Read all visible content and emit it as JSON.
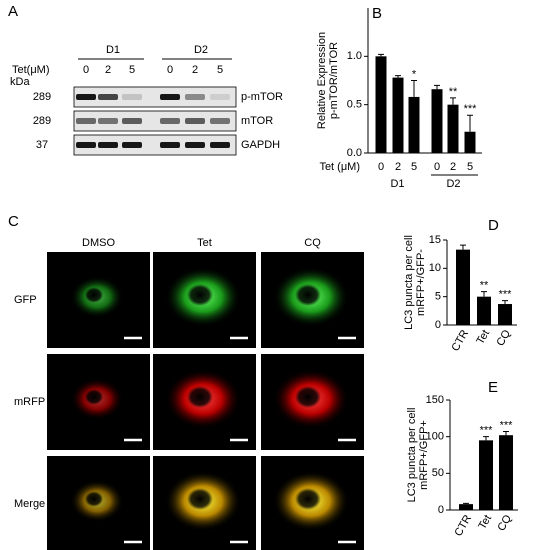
{
  "panels": [
    "A",
    "B",
    "C",
    "D",
    "E"
  ],
  "blot": {
    "treatment_label": "Tet(μM)",
    "unit_label": "kDa",
    "groups": [
      "D1",
      "D2"
    ],
    "lanes": [
      "0",
      "2",
      "5",
      "0",
      "2",
      "5"
    ],
    "rows": [
      {
        "kda": "289",
        "name": "p-mTOR"
      },
      {
        "kda": "289",
        "name": "mTOR"
      },
      {
        "kda": "37",
        "name": "GAPDH"
      }
    ]
  },
  "microscopy": {
    "columns": [
      "DMSO",
      "Tet",
      "CQ"
    ],
    "rows": [
      "GFP",
      "mRFP",
      "Merge"
    ]
  },
  "chart_data": [
    {
      "type": "bar",
      "ylabel": [
        "Relative Expression",
        "p-mTOR/mTOR"
      ],
      "xlabel": "Tet (μM)",
      "categories": [
        "0",
        "2",
        "5",
        "0",
        "2",
        "5"
      ],
      "group_labels": [
        "D1",
        "D2"
      ],
      "values": [
        1.0,
        0.78,
        0.58,
        0.66,
        0.5,
        0.22
      ],
      "errors": [
        0.02,
        0.02,
        0.17,
        0.04,
        0.07,
        0.17
      ],
      "annotations": [
        null,
        null,
        "*",
        null,
        "**",
        "***"
      ],
      "color": "#000000",
      "ylim": [
        0,
        1.5
      ],
      "yticks": [
        {
          "value": 0,
          "label": "0.0"
        },
        {
          "value": 0.5,
          "label": "0.5"
        },
        {
          "value": 1,
          "label": "1.0"
        }
      ]
    },
    {
      "type": "bar",
      "ylabel": [
        "LC3 puncta per cell",
        "mRFP+/GFP-"
      ],
      "categories": [
        "CTR",
        "Tet",
        "CQ"
      ],
      "values": [
        13.3,
        5.0,
        3.7
      ],
      "errors": [
        0.8,
        0.9,
        0.6
      ],
      "annotations": [
        null,
        "**",
        "***"
      ],
      "color": "#000000",
      "ylim": [
        0,
        15
      ],
      "yticks": [
        0,
        5,
        10,
        15
      ]
    },
    {
      "type": "bar",
      "ylabel": [
        "LC3 puncta per cell",
        "mRFP+/GFP+"
      ],
      "categories": [
        "CTR",
        "Tet",
        "CQ"
      ],
      "values": [
        8,
        95,
        102
      ],
      "errors": [
        1,
        5,
        5
      ],
      "annotations": [
        null,
        "***",
        "***"
      ],
      "color": "#000000",
      "ylim": [
        0,
        150
      ],
      "yticks": [
        0,
        50,
        100,
        150
      ]
    }
  ]
}
